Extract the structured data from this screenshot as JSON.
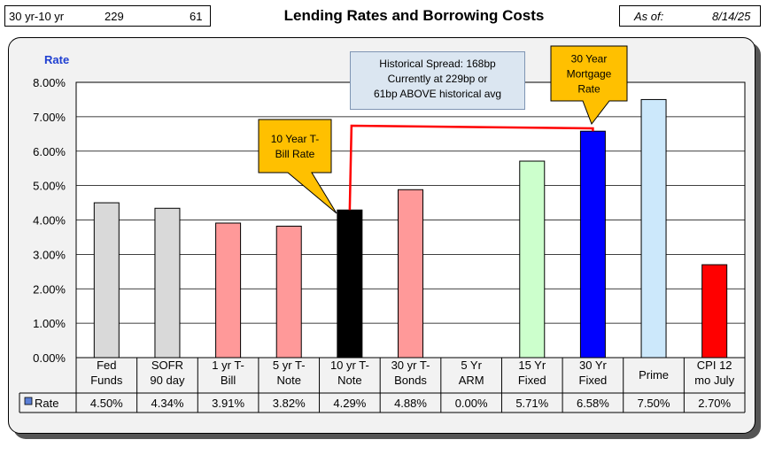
{
  "header": {
    "spread_label": "30 yr-10 yr",
    "spread_bp": "229",
    "spread_vs_avg": "61",
    "title": "Lending Rates and Borrowing Costs",
    "asof_label": "As of:",
    "asof_date": "8/14/25"
  },
  "annotations": {
    "spread_lines": [
      "Historical Spread: 168bp",
      "Currently at 229bp  or",
      "61bp ABOVE historical avg"
    ],
    "ten_year_lines": [
      "10 Year T-",
      "Bill Rate"
    ],
    "mortgage_lines": [
      "30 Year",
      "Mortgage",
      "Rate"
    ]
  },
  "colors": {
    "gray": "#d9d9d9",
    "pink": "#ff9999",
    "black": "#000000",
    "green": "#ccffcc",
    "blue": "#0000ff",
    "light_blue": "#cce8fb",
    "red": "#ff0000",
    "callout": "#ffc000",
    "spread_line": "#ff0000"
  },
  "chart_data": {
    "type": "bar",
    "ylabel": "Rate",
    "ylim": [
      0,
      8
    ],
    "yticks": [
      "0.00%",
      "1.00%",
      "2.00%",
      "3.00%",
      "4.00%",
      "5.00%",
      "6.00%",
      "7.00%",
      "8.00%"
    ],
    "grid": true,
    "categories": [
      [
        "Fed",
        "Funds"
      ],
      [
        "SOFR",
        "90 day"
      ],
      [
        "1 yr  T-",
        "Bill"
      ],
      [
        "5 yr T-",
        "Note"
      ],
      [
        "10 yr T-",
        "Note"
      ],
      [
        "30 yr T-",
        "Bonds"
      ],
      [
        "5 Yr",
        "ARM"
      ],
      [
        "15 Yr",
        "Fixed"
      ],
      [
        "30 Yr",
        "Fixed"
      ],
      [
        "Prime"
      ],
      [
        "CPI 12",
        "mo July"
      ]
    ],
    "series": [
      {
        "name": "Rate",
        "values": [
          4.5,
          4.34,
          3.91,
          3.82,
          4.29,
          4.88,
          0.0,
          5.71,
          6.58,
          7.5,
          2.7
        ],
        "labels": [
          "4.50%",
          "4.34%",
          "3.91%",
          "3.82%",
          "4.29%",
          "4.88%",
          "0.00%",
          "5.71%",
          "6.58%",
          "7.50%",
          "2.70%"
        ],
        "bar_colors": [
          "gray",
          "gray",
          "pink",
          "pink",
          "black",
          "pink",
          "gray",
          "green",
          "blue",
          "light_blue",
          "red"
        ]
      }
    ],
    "legend_marker_color": "#5b7fd6"
  }
}
